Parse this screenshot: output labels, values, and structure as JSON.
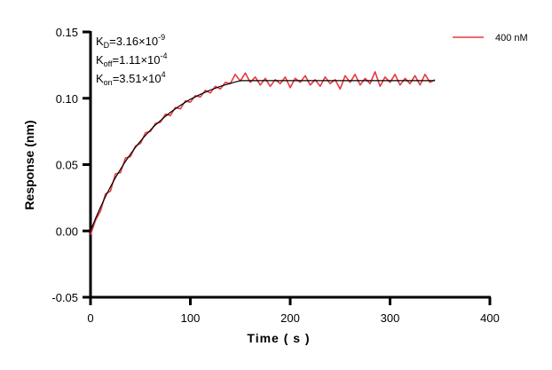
{
  "chart_data": {
    "type": "line",
    "title": "",
    "xlabel": "Time ( s )",
    "ylabel": "Response (nm)",
    "xlim": [
      0,
      400
    ],
    "ylim": [
      -0.05,
      0.15
    ],
    "xticks": [
      "0",
      "100",
      "200",
      "300",
      "400"
    ],
    "yticks": [
      "-0.05",
      "0.00",
      "0.05",
      "0.10",
      "0.15"
    ],
    "xtick_values": [
      0,
      100,
      200,
      300,
      400
    ],
    "ytick_values": [
      -0.05,
      0,
      0.05,
      0.1,
      0.15
    ],
    "grid": false,
    "legend_placement": "top-right",
    "annotations": {
      "kd": {
        "base": "K",
        "sub": "D",
        "text": "=3.16×10",
        "exp": "-9"
      },
      "koff": {
        "base": "K",
        "sub": "off",
        "text": "=1.11×10",
        "exp": "-4"
      },
      "kon": {
        "base": "K",
        "sub": "on",
        "text": "=3.51×10",
        "exp": "4"
      }
    },
    "series": [
      {
        "name": "400 nM",
        "color": "#e8383d",
        "x": [
          0,
          5,
          10,
          15,
          20,
          25,
          30,
          35,
          40,
          45,
          50,
          55,
          60,
          65,
          70,
          75,
          80,
          85,
          90,
          95,
          100,
          105,
          110,
          115,
          120,
          125,
          130,
          135,
          140,
          145,
          150,
          155,
          160,
          165,
          170,
          175,
          180,
          185,
          190,
          195,
          200,
          205,
          210,
          215,
          220,
          225,
          230,
          235,
          240,
          245,
          250,
          255,
          260,
          265,
          270,
          275,
          280,
          285,
          290,
          295,
          300,
          305,
          310,
          315,
          320,
          325,
          330,
          335,
          340,
          345
        ],
        "y": [
          -0.003,
          0.008,
          0.015,
          0.028,
          0.03,
          0.043,
          0.044,
          0.055,
          0.056,
          0.064,
          0.066,
          0.074,
          0.075,
          0.081,
          0.082,
          0.088,
          0.087,
          0.093,
          0.092,
          0.098,
          0.097,
          0.102,
          0.101,
          0.106,
          0.104,
          0.109,
          0.107,
          0.112,
          0.111,
          0.118,
          0.113,
          0.119,
          0.112,
          0.116,
          0.11,
          0.115,
          0.109,
          0.114,
          0.111,
          0.116,
          0.108,
          0.115,
          0.112,
          0.117,
          0.11,
          0.114,
          0.109,
          0.116,
          0.111,
          0.114,
          0.107,
          0.117,
          0.112,
          0.118,
          0.11,
          0.115,
          0.111,
          0.12,
          0.109,
          0.116,
          0.112,
          0.118,
          0.11,
          0.115,
          0.111,
          0.117,
          0.11,
          0.118,
          0.112,
          0.114
        ]
      },
      {
        "color": "#000000",
        "x": [
          0,
          5,
          10,
          15,
          20,
          25,
          30,
          35,
          40,
          45,
          50,
          55,
          60,
          65,
          70,
          75,
          80,
          85,
          90,
          95,
          100,
          110,
          120,
          130,
          140,
          150,
          345
        ],
        "y": [
          0,
          0.0093,
          0.0179,
          0.0259,
          0.0333,
          0.0402,
          0.0465,
          0.0524,
          0.0579,
          0.063,
          0.0677,
          0.072,
          0.076,
          0.0798,
          0.0832,
          0.0864,
          0.0894,
          0.0921,
          0.0946,
          0.097,
          0.0992,
          0.103,
          0.1062,
          0.109,
          0.1113,
          0.1133,
          0.1133
        ]
      }
    ]
  }
}
